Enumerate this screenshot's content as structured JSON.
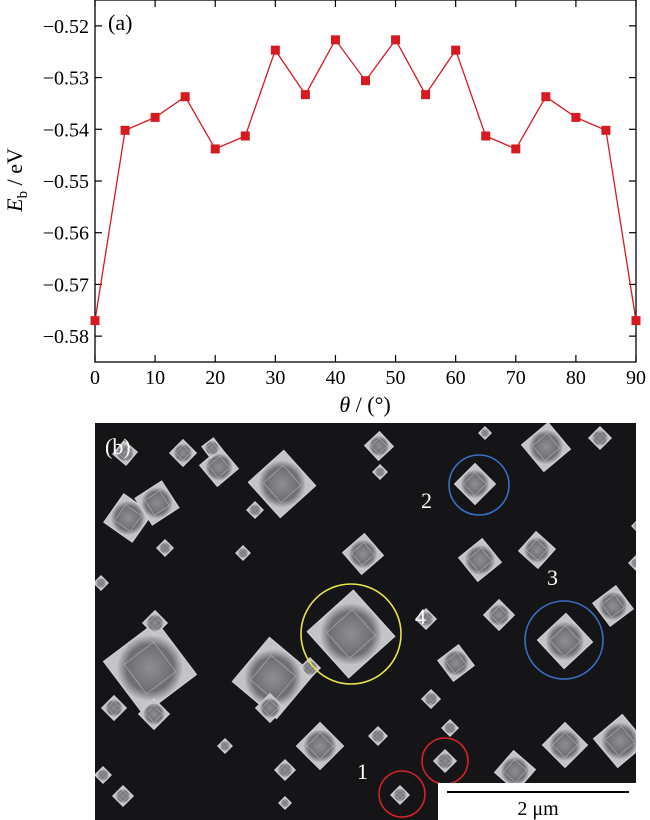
{
  "colors": {
    "series": "#d71920",
    "micrograph_bg": "#151517",
    "crystal": "#a6a6aa",
    "circle_blue": "#3a6fc4",
    "circle_yellow": "#e8e44a",
    "circle_red": "#d4222a",
    "scale_bar_bg": "#ffffff"
  },
  "panel_a": {
    "label": "(a)"
  },
  "panel_b": {
    "label": "(b)",
    "markers": [
      "1",
      "2",
      "3",
      "4"
    ],
    "scale_bar_label": "2 μm"
  },
  "chart_data": {
    "type": "line",
    "x": [
      0,
      5,
      10,
      15,
      20,
      25,
      30,
      35,
      40,
      45,
      50,
      55,
      60,
      65,
      70,
      75,
      80,
      85,
      90
    ],
    "series": [
      {
        "values": [
          -0.577,
          -0.5402,
          -0.5377,
          -0.5337,
          -0.5438,
          -0.5413,
          -0.5247,
          -0.5333,
          -0.5227,
          -0.5306,
          -0.5227,
          -0.5333,
          -0.5247,
          -0.5413,
          -0.5438,
          -0.5337,
          -0.5377,
          -0.5402,
          -0.577
        ]
      }
    ],
    "xlabel": {
      "main": "θ",
      "unit": " / (°)"
    },
    "ylabel": {
      "main": "E",
      "sub": "b",
      "unit": " / eV"
    },
    "xlim": [
      0,
      90
    ],
    "ylim": [
      -0.585,
      -0.515
    ],
    "xticks": [
      0,
      10,
      20,
      30,
      40,
      50,
      60,
      70,
      80,
      90
    ],
    "yticks": [
      -0.52,
      -0.53,
      -0.54,
      -0.55,
      -0.56,
      -0.57,
      -0.58
    ],
    "ytick_labels": [
      "−0.52",
      "−0.53",
      "−0.54",
      "−0.55",
      "−0.56",
      "−0.57",
      "−0.58"
    ],
    "grid": false,
    "marker": "square"
  }
}
